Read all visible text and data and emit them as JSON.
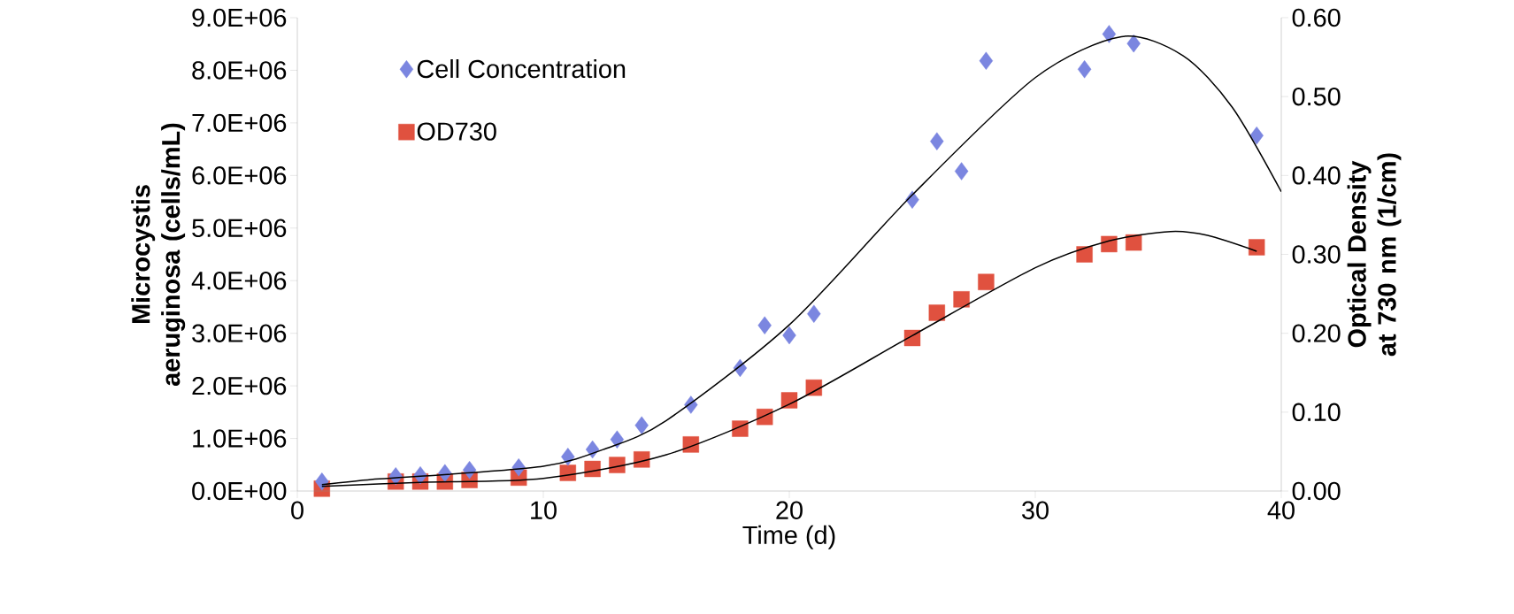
{
  "chart_data": {
    "type": "scatter",
    "xlabel": "Time (d)",
    "ylabel": "Microcystis aeruginosa (cells/mL)",
    "y2label": "Optical Density at 730 nm (1/cm)",
    "xlim": [
      0,
      40
    ],
    "xticks": [
      0,
      10,
      20,
      30,
      40
    ],
    "ylim": [
      0,
      9000000
    ],
    "yticks": [
      {
        "value": 0,
        "label": "0.0E+00"
      },
      {
        "value": 1000000,
        "label": "1.0E+06"
      },
      {
        "value": 2000000,
        "label": "2.0E+06"
      },
      {
        "value": 3000000,
        "label": "3.0E+06"
      },
      {
        "value": 4000000,
        "label": "4.0E+06"
      },
      {
        "value": 5000000,
        "label": "5.0E+06"
      },
      {
        "value": 6000000,
        "label": "6.0E+06"
      },
      {
        "value": 7000000,
        "label": "7.0E+06"
      },
      {
        "value": 8000000,
        "label": "8.0E+06"
      },
      {
        "value": 9000000,
        "label": "9.0E+06"
      }
    ],
    "y2lim": [
      0,
      0.6
    ],
    "y2ticks": [
      {
        "value": 0,
        "label": "0.00"
      },
      {
        "value": 0.1,
        "label": "0.10"
      },
      {
        "value": 0.2,
        "label": "0.20"
      },
      {
        "value": 0.3,
        "label": "0.30"
      },
      {
        "value": 0.4,
        "label": "0.40"
      },
      {
        "value": 0.5,
        "label": "0.50"
      },
      {
        "value": 0.6,
        "label": "0.60"
      }
    ],
    "legend": "top left",
    "grid": false,
    "series": [
      {
        "name": "Cell Concentration",
        "marker": "diamond",
        "color": "#7b86e0",
        "x": [
          1,
          4,
          5,
          6,
          7,
          9,
          11,
          12,
          13,
          14,
          16,
          18,
          19,
          20,
          21,
          25,
          26,
          27,
          28,
          32,
          33,
          34,
          39
        ],
        "values": [
          180000,
          280000,
          300000,
          340000,
          400000,
          450000,
          650000,
          790000,
          980000,
          1250000,
          1640000,
          2340000,
          3150000,
          2960000,
          3370000,
          5540000,
          6650000,
          6080000,
          8180000,
          8020000,
          8690000,
          8510000,
          6760000
        ]
      },
      {
        "name": "OD730",
        "marker": "square",
        "axis": "y2",
        "color": "#e0513f",
        "x": [
          1,
          4,
          5,
          6,
          7,
          9,
          11,
          12,
          13,
          14,
          16,
          18,
          19,
          20,
          21,
          25,
          26,
          27,
          28,
          32,
          33,
          34,
          39
        ],
        "values": [
          0.003,
          0.012,
          0.012,
          0.012,
          0.014,
          0.017,
          0.023,
          0.028,
          0.033,
          0.04,
          0.059,
          0.079,
          0.094,
          0.115,
          0.131,
          0.194,
          0.226,
          0.243,
          0.265,
          0.3,
          0.313,
          0.315,
          0.309
        ]
      },
      {
        "type": "line",
        "marker": "none",
        "color": "#000000",
        "x": [
          1,
          3,
          5,
          10,
          12.5,
          15,
          20,
          25,
          30,
          33.5,
          36,
          38,
          40
        ],
        "values": [
          120000,
          220000,
          280000,
          470000,
          800000,
          1340000,
          3160000,
          5630000,
          7860000,
          8640000,
          8280000,
          7300000,
          5690000
        ]
      },
      {
        "type": "line",
        "marker": "none",
        "axis": "y2",
        "color": "#000000",
        "x": [
          1,
          5,
          10,
          15,
          20,
          25,
          30,
          33,
          35.5,
          37,
          39
        ],
        "values": [
          0.006,
          0.011,
          0.016,
          0.046,
          0.11,
          0.197,
          0.283,
          0.317,
          0.329,
          0.324,
          0.304
        ]
      }
    ]
  }
}
